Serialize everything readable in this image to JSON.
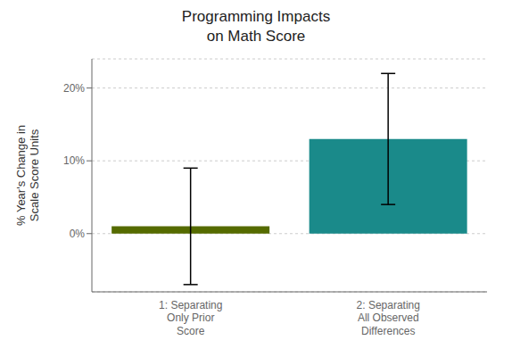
{
  "chart_data": {
    "type": "bar",
    "title": "Programming Impacts\non Math Score",
    "ylabel": "% Year's Change in\nScale Score Units",
    "categories": [
      "1: Separating\nOnly Prior\nScore",
      "2: Separating\nAll Observed\nDifferences"
    ],
    "values": [
      1.0,
      13.0
    ],
    "colors": [
      "#556b00",
      "#1a8a8a"
    ],
    "error_lower": [
      8.0,
      9.0
    ],
    "error_upper": [
      8.0,
      9.0
    ],
    "ylim": [
      -8,
      24
    ],
    "yticks": [
      {
        "value": 0,
        "label": "0%"
      },
      {
        "value": 10,
        "label": "10%"
      },
      {
        "value": 20,
        "label": "20%"
      }
    ],
    "grid": true
  }
}
